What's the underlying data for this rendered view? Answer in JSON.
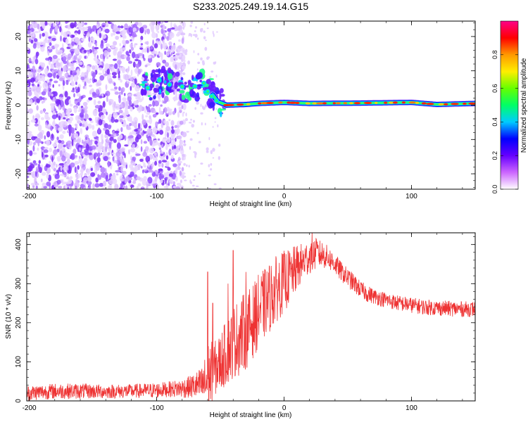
{
  "title": "S233.2025.249.19.14.G15",
  "chart_data": [
    {
      "type": "heatmap",
      "xlabel": "Height of straight line (km)",
      "ylabel": "Frequency (Hz)",
      "xlim": [
        -202,
        150
      ],
      "ylim": [
        -24.5,
        24.5
      ],
      "xticks": [
        -200,
        -100,
        0,
        100
      ],
      "yticks": [
        -20,
        -10,
        0,
        10,
        20
      ],
      "noise_region_x": [
        -202,
        -78
      ],
      "transition_region_x": [
        -110,
        -50
      ],
      "ridge": [
        {
          "x": -108,
          "y": 5.0
        },
        {
          "x": -98,
          "y": 7.0
        },
        {
          "x": -88,
          "y": 6.0
        },
        {
          "x": -78,
          "y": 5.0
        },
        {
          "x": -70,
          "y": 5.5
        },
        {
          "x": -62,
          "y": 6.0
        },
        {
          "x": -56,
          "y": 3.0
        },
        {
          "x": -52,
          "y": 1.0
        },
        {
          "x": -45,
          "y": 0.0
        },
        {
          "x": -30,
          "y": 0.2
        },
        {
          "x": -20,
          "y": 0.5
        },
        {
          "x": 0,
          "y": 0.8
        },
        {
          "x": 20,
          "y": 0.5
        },
        {
          "x": 60,
          "y": 0.6
        },
        {
          "x": 100,
          "y": 0.8
        },
        {
          "x": 120,
          "y": 0.2
        },
        {
          "x": 150,
          "y": 0.5
        }
      ],
      "colorbar": {
        "label": "Normalized spectral amplitude",
        "range": [
          0,
          1
        ],
        "ticks": [
          "0.0",
          "0.2",
          "0.4",
          "0.6",
          "0.8"
        ],
        "colors": [
          "#ffffff",
          "#cc66ff",
          "#6600ff",
          "#0000ff",
          "#00ccff",
          "#00ff66",
          "#66ff00",
          "#ffee00",
          "#ff9900",
          "#ff0000",
          "#ff0088"
        ]
      }
    },
    {
      "type": "line",
      "xlabel": "Height of straight line (km)",
      "ylabel": "SNR (10 * v/v)",
      "xlim": [
        -202,
        150
      ],
      "ylim": [
        0,
        430
      ],
      "xticks": [
        -200,
        -100,
        0,
        100
      ],
      "yticks": [
        0,
        100,
        200,
        300,
        400
      ],
      "color": "#ee3333",
      "series": [
        {
          "name": "SNR",
          "x": [
            -202,
            -180,
            -160,
            -140,
            -120,
            -100,
            -90,
            -80,
            -75,
            -70,
            -65,
            -62,
            -60,
            -58,
            -55,
            -50,
            -45,
            -40,
            -35,
            -30,
            -25,
            -20,
            -15,
            -10,
            -5,
            0,
            5,
            10,
            15,
            20,
            25,
            30,
            35,
            40,
            45,
            50,
            55,
            60,
            65,
            70,
            80,
            90,
            100,
            110,
            120,
            130,
            140,
            150
          ],
          "mean": [
            20,
            25,
            25,
            24,
            25,
            27,
            30,
            32,
            35,
            38,
            40,
            45,
            55,
            65,
            80,
            100,
            125,
            150,
            165,
            180,
            200,
            230,
            250,
            270,
            290,
            305,
            320,
            340,
            355,
            370,
            375,
            375,
            365,
            350,
            330,
            315,
            300,
            285,
            275,
            268,
            258,
            250,
            245,
            240,
            238,
            236,
            235,
            235
          ],
          "amp": [
            20,
            20,
            20,
            18,
            18,
            20,
            20,
            25,
            28,
            35,
            45,
            70,
            100,
            90,
            70,
            75,
            85,
            95,
            100,
            100,
            95,
            95,
            90,
            90,
            85,
            80,
            70,
            60,
            50,
            45,
            40,
            35,
            30,
            28,
            25,
            25,
            24,
            22,
            22,
            20,
            20,
            20,
            20,
            20,
            20,
            20,
            20,
            20
          ],
          "spikes": [
            [
              -60,
              330
            ],
            [
              -40,
              385
            ],
            [
              -56,
              250
            ],
            [
              -44,
              300
            ],
            [
              -30,
              330
            ],
            [
              22,
              430
            ],
            [
              25,
              415
            ]
          ]
        }
      ]
    }
  ]
}
